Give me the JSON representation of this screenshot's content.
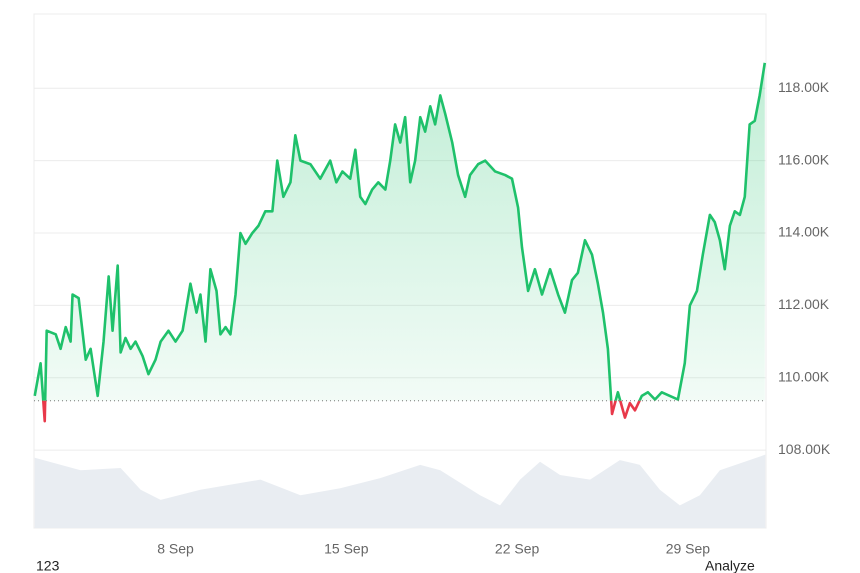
{
  "chart_data": {
    "type": "line",
    "xlim": [
      2.2,
      32.2
    ],
    "xticks": [
      {
        "value": 8,
        "label": "8 Sep"
      },
      {
        "value": 15,
        "label": "15 Sep"
      },
      {
        "value": 22,
        "label": "22 Sep"
      },
      {
        "value": 29,
        "label": "29 Sep"
      }
    ],
    "ylim": [
      105850,
      120050
    ],
    "yticks": [
      {
        "value": 108000,
        "label": "108.00K"
      },
      {
        "value": 110000,
        "label": "110.00K"
      },
      {
        "value": 112000,
        "label": "112.00K"
      },
      {
        "value": 114000,
        "label": "114.00K"
      },
      {
        "value": 116000,
        "label": "116.00K"
      },
      {
        "value": 118000,
        "label": "118.00K"
      }
    ],
    "grid": true,
    "baseline": 109365,
    "up_color": "#1fc16b",
    "down_color": "#e8394a",
    "series": [
      {
        "x": [
          2.23,
          2.47,
          2.64,
          2.72,
          3.09,
          3.29,
          3.5,
          3.7,
          3.78,
          4.03,
          4.32,
          4.52,
          4.81,
          5.05,
          5.26,
          5.42,
          5.63,
          5.75,
          5.95,
          6.16,
          6.36,
          6.65,
          6.89,
          7.18,
          7.39,
          7.71,
          8,
          8.29,
          8.61,
          8.86,
          9.02,
          9.23,
          9.43,
          9.68,
          9.84,
          10.05,
          10.25,
          10.46,
          10.66,
          10.87,
          11.15,
          11.4,
          11.68,
          11.97,
          12.17,
          12.42,
          12.71,
          12.91,
          13.12,
          13.53,
          13.93,
          14.34,
          14.59,
          14.84,
          15.16,
          15.37,
          15.57,
          15.78,
          16.06,
          16.31,
          16.6,
          16.8,
          17,
          17.21,
          17.41,
          17.62,
          17.82,
          18.03,
          18.23,
          18.44,
          18.64,
          18.85,
          19.05,
          19.34,
          19.58,
          19.87,
          20.07,
          20.4,
          20.69,
          21.1,
          21.51,
          21.79,
          22.04,
          22.2,
          22.45,
          22.73,
          23.02,
          23.35,
          23.68,
          23.96,
          24.25,
          24.49,
          24.78,
          25.07,
          25.31,
          25.52,
          25.72,
          25.89,
          26.13,
          26.42,
          26.62,
          26.83,
          27.11,
          27.36,
          27.65,
          27.93,
          28.26,
          28.59,
          28.87,
          29.08,
          29.37,
          29.61,
          29.9,
          30.1,
          30.31,
          30.51,
          30.72,
          30.92,
          31.13,
          31.33,
          31.53,
          31.74,
          31.94,
          32.15
        ],
        "values": [
          109500,
          110400,
          108800,
          111300,
          111200,
          110800,
          111400,
          111000,
          112300,
          112200,
          110500,
          110800,
          109500,
          111000,
          112800,
          111300,
          113100,
          110700,
          111100,
          110800,
          111000,
          110600,
          110100,
          110500,
          111000,
          111300,
          111000,
          111300,
          112600,
          111800,
          112300,
          111000,
          113000,
          112400,
          111200,
          111400,
          111200,
          112300,
          114000,
          113700,
          114000,
          114200,
          114600,
          114600,
          116000,
          115000,
          115400,
          116700,
          116000,
          115900,
          115500,
          116000,
          115400,
          115700,
          115500,
          116300,
          115000,
          114800,
          115200,
          115400,
          115200,
          116000,
          117000,
          116500,
          117200,
          115400,
          116000,
          117200,
          116800,
          117500,
          117000,
          117800,
          117300,
          116500,
          115600,
          115000,
          115600,
          115900,
          116000,
          115700,
          115600,
          115500,
          114700,
          113600,
          112400,
          113000,
          112300,
          113000,
          112300,
          111800,
          112700,
          112900,
          113800,
          113400,
          112600,
          111800,
          110800,
          109000,
          109600,
          108900,
          109300,
          109100,
          109500,
          109600,
          109400,
          109600,
          109500,
          109400,
          110400,
          112000,
          112400,
          113400,
          114500,
          114300,
          113800,
          113000,
          114200,
          114600,
          114500,
          115000,
          117000,
          117100,
          117800,
          118700
        ]
      }
    ],
    "volume": {
      "color": "#e9edf2",
      "ylim": [
        0,
        100
      ],
      "x": [
        2.23,
        4.11,
        5.75,
        6.57,
        7.39,
        9.02,
        11.48,
        13.12,
        14.75,
        16.39,
        18.03,
        18.85,
        20.48,
        21.3,
        22.12,
        22.94,
        23.76,
        24.99,
        26.21,
        27.03,
        27.85,
        28.67,
        29.49,
        30.31,
        32.17
      ],
      "values": [
        90,
        74,
        77,
        49,
        36,
        49,
        62,
        42,
        51,
        64,
        81,
        74,
        42,
        29,
        62,
        85,
        68,
        62,
        87,
        81,
        49,
        29,
        42,
        74,
        94
      ]
    },
    "footer": {
      "left": "123",
      "right": "Analyze"
    }
  }
}
